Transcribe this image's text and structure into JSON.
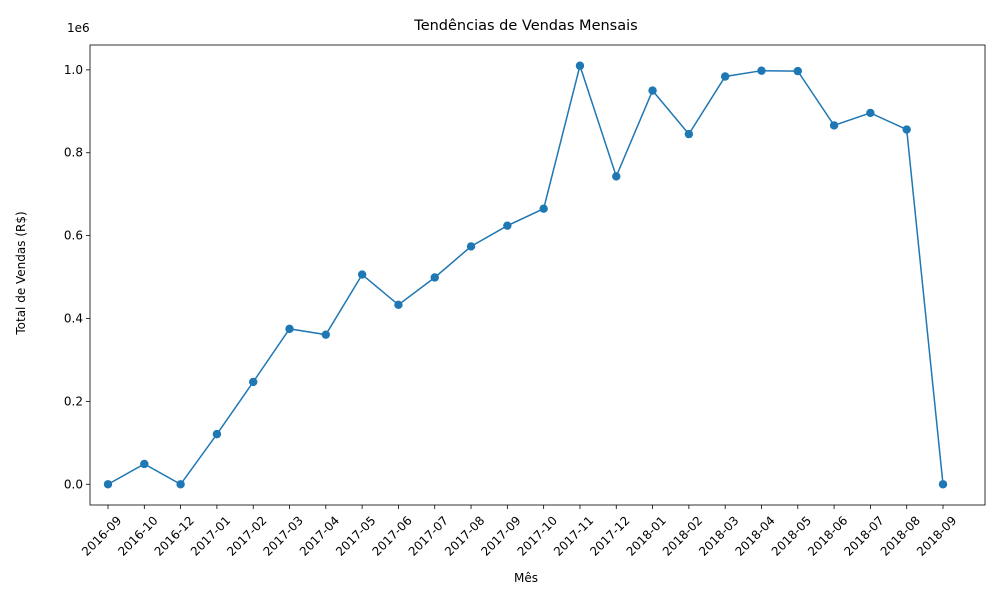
{
  "chart_data": {
    "type": "line",
    "title": "Tendências de Vendas Mensais",
    "xlabel": "Mês",
    "ylabel": "Total de Vendas (R$)",
    "y_offset_label": "1e6",
    "categories": [
      "2016-09",
      "2016-10",
      "2016-12",
      "2017-01",
      "2017-02",
      "2017-03",
      "2017-04",
      "2017-05",
      "2017-06",
      "2017-07",
      "2017-08",
      "2017-09",
      "2017-10",
      "2017-11",
      "2017-12",
      "2018-01",
      "2018-02",
      "2018-03",
      "2018-04",
      "2018-05",
      "2018-06",
      "2018-07",
      "2018-08",
      "2018-09"
    ],
    "series": [
      {
        "values": [
          0,
          49000,
          0,
          121000,
          247000,
          375000,
          361000,
          506000,
          433000,
          499000,
          574000,
          624000,
          665000,
          1010000,
          743000,
          950000,
          845000,
          984000,
          998000,
          997000,
          866000,
          896000,
          856000,
          0
        ],
        "color": "#1f77b4"
      }
    ],
    "ylim": [
      -50000,
      1060000
    ],
    "yticks": [
      0,
      200000,
      400000,
      600000,
      800000,
      1000000
    ],
    "ytick_labels": [
      "0.0",
      "0.2",
      "0.4",
      "0.6",
      "0.8",
      "1.0"
    ],
    "grid": false
  }
}
